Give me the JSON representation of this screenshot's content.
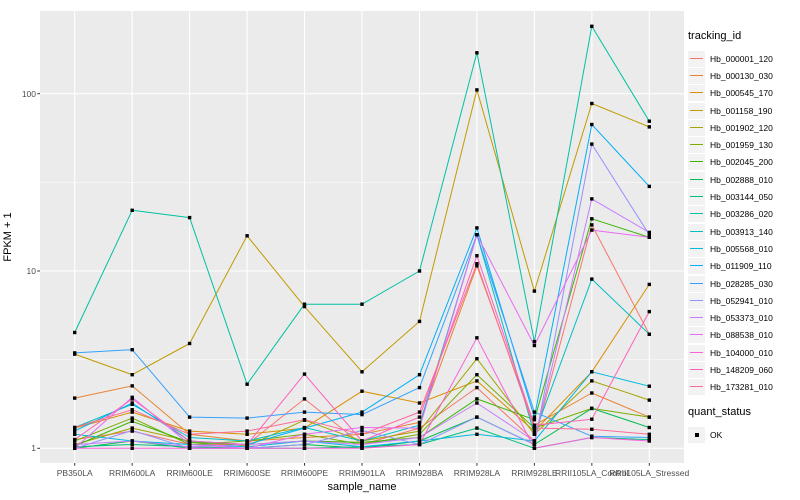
{
  "figure": {
    "background": "#FFFFFF",
    "panel_background": "#EBEBEB",
    "grid_color": "#FFFFFF",
    "tick_label_color": "#4D4D4D",
    "point_color": "#000000"
  },
  "chart_data": {
    "type": "line",
    "title": "",
    "xlabel": "sample_name",
    "ylabel": "FPKM + 1",
    "y_scale": "log10",
    "y_ticks": [
      "1",
      "10",
      "100"
    ],
    "y_tick_values": [
      1,
      10,
      100
    ],
    "y_minor_values": [
      3.1623,
      31.623
    ],
    "ylim": [
      0.83,
      293
    ],
    "grid": true,
    "legend_position": "right",
    "categories": [
      "PB350LA",
      "RRIM600LA",
      "RRIM600LE",
      "RRIM600SE",
      "RRIM600PE",
      "RRIM901LA",
      "RRIM928BA",
      "RRIM928LA",
      "RRIM928LE",
      "RRII105LA_Control",
      "RRII105LA_Stressed"
    ],
    "legend": {
      "color_title": "tracking_id",
      "shape_title": "quant_status",
      "shape_items": [
        {
          "label": "OK"
        }
      ]
    },
    "series": [
      {
        "name": "Hb_000001_120",
        "color": "#F8766D",
        "values": [
          1.12,
          1.25,
          1.05,
          1.05,
          1.9,
          1.05,
          1.3,
          2.2,
          1.1,
          18.2,
          4.4
        ]
      },
      {
        "name": "Hb_000130_030",
        "color": "#EA8331",
        "values": [
          1.92,
          2.25,
          1.2,
          1.1,
          1.15,
          1.2,
          1.4,
          10.7,
          1.35,
          2.05,
          1.5
        ]
      },
      {
        "name": "Hb_000545_170",
        "color": "#D89000",
        "values": [
          1.3,
          1.6,
          1.25,
          1.2,
          1.3,
          2.1,
          1.8,
          2.4,
          1.25,
          2.7,
          8.4
        ]
      },
      {
        "name": "Hb_001158_190",
        "color": "#C09B00",
        "values": [
          3.4,
          2.6,
          3.9,
          15.8,
          6.3,
          2.7,
          5.2,
          105,
          7.7,
          88,
          65
        ]
      },
      {
        "name": "Hb_001902_120",
        "color": "#A3A500",
        "values": [
          1.05,
          1.3,
          1.1,
          1.03,
          1.44,
          1.1,
          1.25,
          3.2,
          1.2,
          2.4,
          1.87
        ]
      },
      {
        "name": "Hb_001959_130",
        "color": "#7CAE00",
        "values": [
          1.1,
          1.48,
          1.05,
          1.1,
          1.2,
          1.05,
          1.2,
          2.6,
          1.3,
          1.68,
          1.5
        ]
      },
      {
        "name": "Hb_002045_200",
        "color": "#39B600",
        "values": [
          1.03,
          1.42,
          1.08,
          1.05,
          1.1,
          1.08,
          1.15,
          1.9,
          1.45,
          19.7,
          15.5
        ]
      },
      {
        "name": "Hb_002888_010",
        "color": "#00BB4E",
        "values": [
          1.0,
          1.1,
          1.0,
          1.0,
          1.05,
          1.0,
          1.1,
          1.5,
          1.05,
          1.68,
          1.31
        ]
      },
      {
        "name": "Hb_003144_050",
        "color": "#00BF7D",
        "values": [
          1.02,
          1.05,
          1.02,
          1.0,
          1.0,
          1.02,
          1.05,
          1.3,
          1.0,
          1.15,
          1.12
        ]
      },
      {
        "name": "Hb_003286_020",
        "color": "#00C1A3",
        "values": [
          4.5,
          22,
          20,
          2.3,
          6.5,
          6.5,
          10,
          170,
          4.0,
          240,
          70
        ]
      },
      {
        "name": "Hb_003913_140",
        "color": "#00BFC4",
        "values": [
          1.31,
          1.77,
          1.15,
          1.1,
          1.31,
          1.1,
          1.35,
          16,
          1.2,
          9,
          4.4
        ]
      },
      {
        "name": "Hb_005568_010",
        "color": "#00BAE0",
        "values": [
          1.2,
          1.1,
          1.05,
          1.02,
          1.1,
          1.02,
          1.1,
          1.2,
          1.1,
          2.7,
          2.24
        ]
      },
      {
        "name": "Hb_011909_110",
        "color": "#00B0F6",
        "values": [
          1.25,
          1.8,
          1.1,
          1.05,
          1.3,
          1.6,
          2.6,
          17.5,
          1.5,
          67,
          30
        ]
      },
      {
        "name": "Hb_028285_030",
        "color": "#35A2FF",
        "values": [
          3.45,
          3.6,
          1.5,
          1.48,
          1.6,
          1.55,
          2.2,
          16,
          1.6,
          1.17,
          1.15
        ]
      },
      {
        "name": "Hb_052941_010",
        "color": "#9590FF",
        "values": [
          1.0,
          1.26,
          1.0,
          1.0,
          1.05,
          1.26,
          1.05,
          1.5,
          1.05,
          52,
          16
        ]
      },
      {
        "name": "Hb_053373_010",
        "color": "#C77CFF",
        "values": [
          1.05,
          1.1,
          1.02,
          1.05,
          1.1,
          1.05,
          1.15,
          1.8,
          1.1,
          25.5,
          16.5
        ]
      },
      {
        "name": "Hb_088538_010",
        "color": "#E76BF3",
        "values": [
          1.0,
          1.94,
          1.05,
          1.0,
          1.2,
          1.31,
          1.3,
          16,
          3.8,
          17,
          15.5
        ]
      },
      {
        "name": "Hb_104000_010",
        "color": "#FA62DB",
        "values": [
          1.0,
          1.0,
          1.0,
          1.0,
          1.0,
          1.0,
          1.05,
          4.2,
          1.0,
          1.15,
          1.1
        ]
      },
      {
        "name": "Hb_148209_060",
        "color": "#FF62BC",
        "values": [
          1.12,
          1.9,
          1.1,
          1.05,
          2.62,
          1.1,
          1.5,
          12.2,
          1.35,
          1.46,
          5.9
        ]
      },
      {
        "name": "Hb_173281_010",
        "color": "#FF6A98",
        "values": [
          1.31,
          1.65,
          1.2,
          1.25,
          1.45,
          1.2,
          1.6,
          11,
          1.3,
          1.28,
          1.2
        ]
      }
    ]
  }
}
